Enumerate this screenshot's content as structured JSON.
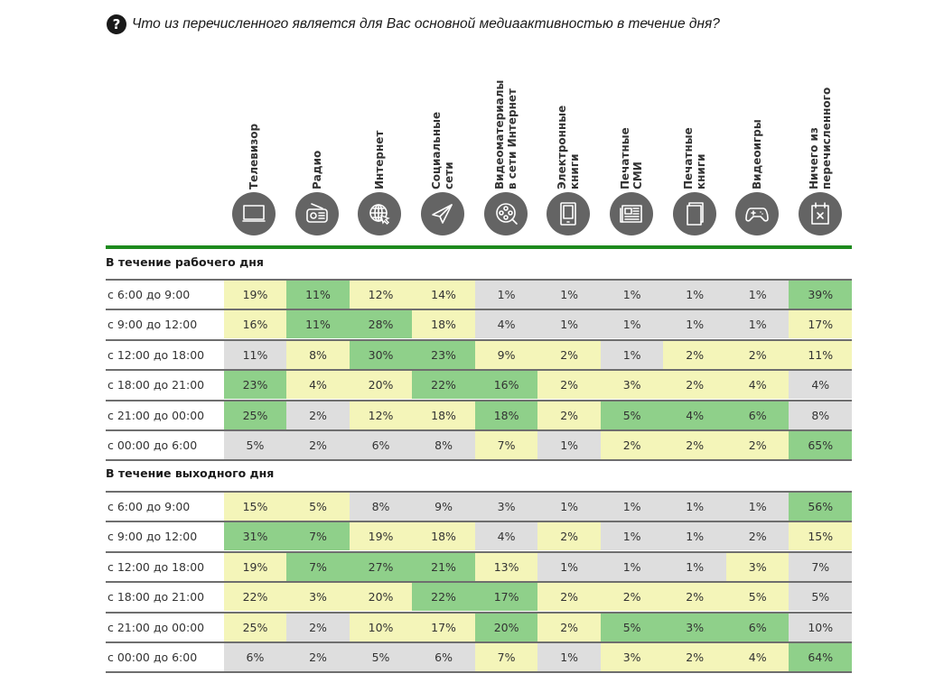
{
  "title": {
    "icon": "question-circle-icon",
    "icon_glyph": "?",
    "text": "Что из перечисленного является для Вас основной медиаактивностью в течение дня?"
  },
  "colors": {
    "high": "#8fd08a",
    "medium": "#f4f5b9",
    "low": "#dedede",
    "rule": "#1e8a1e",
    "icon_bg": "#646464"
  },
  "columns": [
    {
      "label_lines": [
        "Телевизор"
      ],
      "icon": "tv-icon"
    },
    {
      "label_lines": [
        "Радио"
      ],
      "icon": "radio-icon"
    },
    {
      "label_lines": [
        "Интернет"
      ],
      "icon": "globe-cursor-icon"
    },
    {
      "label_lines": [
        "Социальные",
        "сети"
      ],
      "icon": "paper-plane-icon"
    },
    {
      "label_lines": [
        "Видеоматериалы",
        "в сети Интернет"
      ],
      "icon": "film-reel-icon"
    },
    {
      "label_lines": [
        "Электронные",
        "книги"
      ],
      "icon": "ebook-reader-icon"
    },
    {
      "label_lines": [
        "Печатные",
        "СМИ"
      ],
      "icon": "newspaper-icon"
    },
    {
      "label_lines": [
        "Печатные",
        "книги"
      ],
      "icon": "book-icon"
    },
    {
      "label_lines": [
        "Видеоигры"
      ],
      "icon": "gamepad-icon"
    },
    {
      "label_lines": [
        "Ничего из",
        "перечисленного"
      ],
      "icon": "calendar-x-icon"
    }
  ],
  "chart_data": {
    "type": "heatmap",
    "title": "Что из перечисленного является для Вас основной медиаактивностью в течение дня?",
    "columns": [
      "Телевизор",
      "Радио",
      "Интернет",
      "Социальные сети",
      "Видеоматериалы в сети Интернет",
      "Электронные книги",
      "Печатные СМИ",
      "Печатные книги",
      "Видеоигры",
      "Ничего из перечисленного"
    ],
    "unit": "%",
    "color_legend": {
      "g": "high",
      "y": "medium",
      "n": "low"
    },
    "sections": [
      {
        "title": "В течение рабочего дня",
        "rows": [
          {
            "label": "с 6:00 до 9:00",
            "values": [
              19,
              11,
              12,
              14,
              1,
              1,
              1,
              1,
              1,
              39
            ],
            "levels": [
              "y",
              "g",
              "y",
              "y",
              "n",
              "n",
              "n",
              "n",
              "n",
              "g"
            ]
          },
          {
            "label": "с 9:00 до 12:00",
            "values": [
              16,
              11,
              28,
              18,
              4,
              1,
              1,
              1,
              1,
              17
            ],
            "levels": [
              "y",
              "g",
              "g",
              "y",
              "n",
              "n",
              "n",
              "n",
              "n",
              "y"
            ]
          },
          {
            "label": "с 12:00 до 18:00",
            "values": [
              11,
              8,
              30,
              23,
              9,
              2,
              1,
              2,
              2,
              11
            ],
            "levels": [
              "n",
              "y",
              "g",
              "g",
              "y",
              "y",
              "n",
              "y",
              "y",
              "y"
            ]
          },
          {
            "label": "с 18:00 до 21:00",
            "values": [
              23,
              4,
              20,
              22,
              16,
              2,
              3,
              2,
              4,
              4
            ],
            "levels": [
              "g",
              "y",
              "y",
              "g",
              "g",
              "y",
              "y",
              "y",
              "y",
              "n"
            ]
          },
          {
            "label": "с 21:00 до 00:00",
            "values": [
              25,
              2,
              12,
              18,
              18,
              2,
              5,
              4,
              6,
              8
            ],
            "levels": [
              "g",
              "n",
              "y",
              "y",
              "g",
              "y",
              "g",
              "g",
              "g",
              "n"
            ]
          },
          {
            "label": "с 00:00 до 6:00",
            "values": [
              5,
              2,
              6,
              8,
              7,
              1,
              2,
              2,
              2,
              65
            ],
            "levels": [
              "n",
              "n",
              "n",
              "n",
              "y",
              "n",
              "y",
              "y",
              "y",
              "g"
            ]
          }
        ]
      },
      {
        "title": "В течение выходного дня",
        "rows": [
          {
            "label": "с 6:00 до 9:00",
            "values": [
              15,
              5,
              8,
              9,
              3,
              1,
              1,
              1,
              1,
              56
            ],
            "levels": [
              "y",
              "y",
              "n",
              "n",
              "n",
              "n",
              "n",
              "n",
              "n",
              "g"
            ]
          },
          {
            "label": "с 9:00 до 12:00",
            "values": [
              31,
              7,
              19,
              18,
              4,
              2,
              1,
              1,
              2,
              15
            ],
            "levels": [
              "g",
              "g",
              "y",
              "y",
              "n",
              "y",
              "n",
              "n",
              "n",
              "y"
            ]
          },
          {
            "label": "с 12:00 до 18:00",
            "values": [
              19,
              7,
              27,
              21,
              13,
              1,
              1,
              1,
              3,
              7
            ],
            "levels": [
              "y",
              "g",
              "g",
              "g",
              "y",
              "n",
              "n",
              "n",
              "y",
              "n"
            ]
          },
          {
            "label": "с 18:00 до 21:00",
            "values": [
              22,
              3,
              20,
              22,
              17,
              2,
              2,
              2,
              5,
              5
            ],
            "levels": [
              "y",
              "y",
              "y",
              "g",
              "g",
              "y",
              "y",
              "y",
              "y",
              "n"
            ]
          },
          {
            "label": "с 21:00 до 00:00",
            "values": [
              25,
              2,
              10,
              17,
              20,
              2,
              5,
              3,
              6,
              10
            ],
            "levels": [
              "y",
              "n",
              "y",
              "y",
              "g",
              "y",
              "g",
              "g",
              "g",
              "n"
            ]
          },
          {
            "label": "с 00:00 до 6:00",
            "values": [
              6,
              2,
              5,
              6,
              7,
              1,
              3,
              2,
              4,
              64
            ],
            "levels": [
              "n",
              "n",
              "n",
              "n",
              "y",
              "n",
              "y",
              "y",
              "y",
              "g"
            ]
          }
        ]
      }
    ]
  }
}
